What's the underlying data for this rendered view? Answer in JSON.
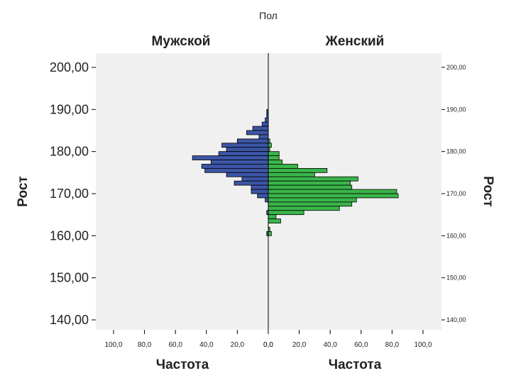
{
  "chart_data": {
    "type": "bar",
    "orientation": "horizontal",
    "layout": "population-pyramid",
    "title": "Пол",
    "panels": [
      {
        "name": "Мужской",
        "side": "left",
        "color": "#3c55a5",
        "xlabel": "Частота",
        "xlim": [
          0,
          100
        ],
        "xticks": [
          "100,0",
          "80,0",
          "60,0",
          "40,0",
          "20,0",
          "0,0"
        ],
        "values": [
          {
            "y": 189,
            "v": 1
          },
          {
            "y": 188,
            "v": 1
          },
          {
            "y": 187,
            "v": 2
          },
          {
            "y": 186,
            "v": 4
          },
          {
            "y": 185,
            "v": 10
          },
          {
            "y": 184,
            "v": 14
          },
          {
            "y": 183,
            "v": 6
          },
          {
            "y": 182,
            "v": 20
          },
          {
            "y": 181,
            "v": 30
          },
          {
            "y": 180,
            "v": 27
          },
          {
            "y": 179,
            "v": 32
          },
          {
            "y": 178,
            "v": 49
          },
          {
            "y": 177,
            "v": 37
          },
          {
            "y": 176,
            "v": 43
          },
          {
            "y": 175,
            "v": 41
          },
          {
            "y": 174,
            "v": 27
          },
          {
            "y": 173,
            "v": 17
          },
          {
            "y": 172,
            "v": 22
          },
          {
            "y": 171,
            "v": 11
          },
          {
            "y": 170,
            "v": 11
          },
          {
            "y": 169,
            "v": 7
          },
          {
            "y": 168,
            "v": 2
          },
          {
            "y": 165,
            "v": 1
          },
          {
            "y": 160,
            "v": 1
          }
        ]
      },
      {
        "name": "Женский",
        "side": "right",
        "color": "#3ab54a",
        "xlabel": "Частота",
        "xlim": [
          0,
          100
        ],
        "xticks": [
          "0,0",
          "20,0",
          "40,0",
          "60,0",
          "80,0",
          "100,0"
        ],
        "values": [
          {
            "y": 182,
            "v": 1
          },
          {
            "y": 181,
            "v": 2
          },
          {
            "y": 180,
            "v": 1
          },
          {
            "y": 179,
            "v": 7
          },
          {
            "y": 178,
            "v": 7
          },
          {
            "y": 177,
            "v": 9
          },
          {
            "y": 176,
            "v": 19
          },
          {
            "y": 175,
            "v": 38
          },
          {
            "y": 174,
            "v": 30
          },
          {
            "y": 173,
            "v": 58
          },
          {
            "y": 172,
            "v": 53
          },
          {
            "y": 171,
            "v": 54
          },
          {
            "y": 170,
            "v": 83
          },
          {
            "y": 169,
            "v": 84
          },
          {
            "y": 168,
            "v": 57
          },
          {
            "y": 167,
            "v": 54
          },
          {
            "y": 166,
            "v": 46
          },
          {
            "y": 165,
            "v": 23
          },
          {
            "y": 164,
            "v": 5
          },
          {
            "y": 163,
            "v": 8
          },
          {
            "y": 161,
            "v": 1
          },
          {
            "y": 160,
            "v": 2
          }
        ]
      }
    ],
    "y_axis": {
      "label": "Рост",
      "ylim": [
        140,
        202
      ],
      "ticks": [
        {
          "value": 140,
          "label": "140,00"
        },
        {
          "value": 150,
          "label": "150,00"
        },
        {
          "value": 160,
          "label": "160,00"
        },
        {
          "value": 170,
          "label": "170,00"
        },
        {
          "value": 180,
          "label": "180,00"
        },
        {
          "value": 190,
          "label": "190,00"
        },
        {
          "value": 200,
          "label": "200,00"
        }
      ]
    },
    "plot_background": "#f0f0f0",
    "grid": false
  }
}
